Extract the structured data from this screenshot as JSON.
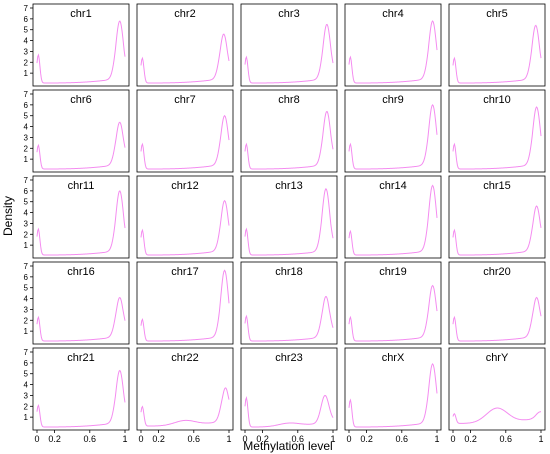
{
  "chart_data": {
    "type": "line",
    "layout": "small-multiples 5x5",
    "xlabel": "Methylation level",
    "ylabel": "Density",
    "xlim": [
      0,
      1
    ],
    "ylim": [
      0,
      7
    ],
    "x_ticks": [
      "0",
      "0.2",
      "0.6",
      "1"
    ],
    "x_tick_values": [
      0,
      0.2,
      0.6,
      1
    ],
    "y_ticks": [
      "1",
      "2",
      "3",
      "4",
      "5",
      "6",
      "7"
    ],
    "y_tick_values": [
      1,
      2,
      3,
      4,
      5,
      6,
      7
    ],
    "line_color": "#f48cf0",
    "grid": false,
    "panels": [
      {
        "title": "chr1",
        "low_peak": 2.6,
        "mid_hump": 0.0,
        "high_peak": 5.8,
        "peak_x": 0.94,
        "baseline": 0.15
      },
      {
        "title": "chr2",
        "low_peak": 2.3,
        "mid_hump": 0.0,
        "high_peak": 4.6,
        "peak_x": 0.94,
        "baseline": 0.15
      },
      {
        "title": "chr3",
        "low_peak": 2.4,
        "mid_hump": 0.0,
        "high_peak": 5.5,
        "peak_x": 0.93,
        "baseline": 0.15
      },
      {
        "title": "chr4",
        "low_peak": 2.4,
        "mid_hump": 0.0,
        "high_peak": 5.8,
        "peak_x": 0.95,
        "baseline": 0.15
      },
      {
        "title": "chr5",
        "low_peak": 2.3,
        "mid_hump": 0.0,
        "high_peak": 5.4,
        "peak_x": 0.94,
        "baseline": 0.15
      },
      {
        "title": "chr6",
        "low_peak": 2.2,
        "mid_hump": 0.0,
        "high_peak": 4.4,
        "peak_x": 0.94,
        "baseline": 0.15
      },
      {
        "title": "chr7",
        "low_peak": 2.3,
        "mid_hump": 0.0,
        "high_peak": 5.0,
        "peak_x": 0.95,
        "baseline": 0.15
      },
      {
        "title": "chr8",
        "low_peak": 2.3,
        "mid_hump": 0.0,
        "high_peak": 5.4,
        "peak_x": 0.93,
        "baseline": 0.15
      },
      {
        "title": "chr9",
        "low_peak": 2.3,
        "mid_hump": 0.0,
        "high_peak": 6.0,
        "peak_x": 0.95,
        "baseline": 0.15
      },
      {
        "title": "chr10",
        "low_peak": 2.3,
        "mid_hump": 0.0,
        "high_peak": 5.8,
        "peak_x": 0.95,
        "baseline": 0.15
      },
      {
        "title": "chr11",
        "low_peak": 2.4,
        "mid_hump": 0.0,
        "high_peak": 6.0,
        "peak_x": 0.94,
        "baseline": 0.15
      },
      {
        "title": "chr12",
        "low_peak": 2.3,
        "mid_hump": 0.0,
        "high_peak": 5.1,
        "peak_x": 0.95,
        "baseline": 0.15
      },
      {
        "title": "chr13",
        "low_peak": 2.4,
        "mid_hump": 0.0,
        "high_peak": 6.2,
        "peak_x": 0.92,
        "baseline": 0.15
      },
      {
        "title": "chr14",
        "low_peak": 2.2,
        "mid_hump": 0.0,
        "high_peak": 6.5,
        "peak_x": 0.95,
        "baseline": 0.15
      },
      {
        "title": "chr15",
        "low_peak": 2.3,
        "mid_hump": 0.0,
        "high_peak": 4.6,
        "peak_x": 0.95,
        "baseline": 0.15
      },
      {
        "title": "chr16",
        "low_peak": 2.2,
        "mid_hump": 0.0,
        "high_peak": 4.1,
        "peak_x": 0.94,
        "baseline": 0.15
      },
      {
        "title": "chr17",
        "low_peak": 2.0,
        "mid_hump": 0.0,
        "high_peak": 6.6,
        "peak_x": 0.95,
        "baseline": 0.15
      },
      {
        "title": "chr18",
        "low_peak": 2.3,
        "mid_hump": 0.0,
        "high_peak": 4.2,
        "peak_x": 0.92,
        "baseline": 0.15
      },
      {
        "title": "chr19",
        "low_peak": 2.2,
        "mid_hump": 0.0,
        "high_peak": 5.2,
        "peak_x": 0.95,
        "baseline": 0.15
      },
      {
        "title": "chr20",
        "low_peak": 2.2,
        "mid_hump": 0.0,
        "high_peak": 4.1,
        "peak_x": 0.95,
        "baseline": 0.15
      },
      {
        "title": "chr21",
        "low_peak": 2.0,
        "mid_hump": 0.0,
        "high_peak": 5.3,
        "peak_x": 0.94,
        "baseline": 0.15
      },
      {
        "title": "chr22",
        "low_peak": 1.8,
        "mid_hump": 0.45,
        "high_peak": 3.7,
        "peak_x": 0.96,
        "baseline": 0.3
      },
      {
        "title": "chr23",
        "low_peak": 2.7,
        "mid_hump": 0.3,
        "high_peak": 3.0,
        "peak_x": 0.91,
        "baseline": 0.15
      },
      {
        "title": "chrX",
        "low_peak": 2.5,
        "mid_hump": 0.0,
        "high_peak": 5.9,
        "peak_x": 0.95,
        "baseline": 0.15
      },
      {
        "title": "chrY",
        "low_peak": 0.9,
        "mid_hump": 1.35,
        "high_peak": 0.8,
        "peak_x": 0.99,
        "baseline": 0.7
      }
    ]
  }
}
